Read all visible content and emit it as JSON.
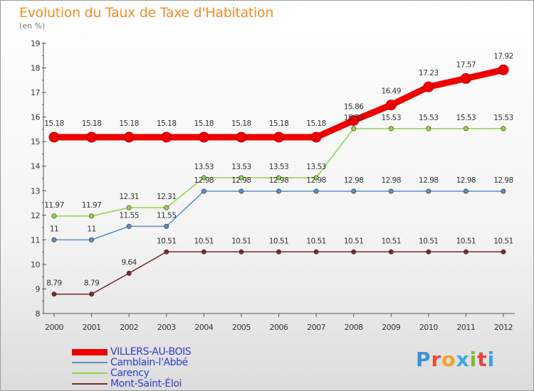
{
  "title": "Evolution du Taux de Taxe d'Habitation",
  "unit": "(en %)",
  "logo": {
    "text": "Proxiti"
  },
  "chart_data": {
    "type": "line",
    "x": [
      "2000",
      "2001",
      "2002",
      "2003",
      "2004",
      "2005",
      "2006",
      "2007",
      "2008",
      "2009",
      "2010",
      "2011",
      "2012"
    ],
    "ylim": [
      8,
      19
    ],
    "yticks": [
      8,
      9,
      10,
      11,
      12,
      13,
      14,
      15,
      16,
      17,
      18,
      19
    ],
    "grid": false,
    "legend_position": "bottom-left",
    "series": [
      {
        "name": "VILLERS-AU-BOIS",
        "color": "#ee0000",
        "values": [
          15.18,
          15.18,
          15.18,
          15.18,
          15.18,
          15.18,
          15.18,
          15.18,
          15.86,
          16.49,
          17.23,
          17.57,
          17.92
        ],
        "labels": [
          "15.18",
          "15.18",
          "15.18",
          "15.18",
          "15.18",
          "15.18",
          "15.18",
          "15.18",
          "15.86",
          "16.49",
          "17.23",
          "17.57",
          "17.92"
        ]
      },
      {
        "name": "Camblain-l'Abbé",
        "color": "#5b8dc8",
        "values": [
          11,
          11,
          11.55,
          11.55,
          12.98,
          12.98,
          12.98,
          12.98,
          12.98,
          12.98,
          12.98,
          12.98,
          12.98
        ],
        "labels": [
          "11",
          "11",
          "11.55",
          "11.55",
          "12.98",
          "12.98",
          "12.98",
          "12.98",
          "12.98",
          "12.98",
          "12.98",
          "12.98",
          "12.98"
        ]
      },
      {
        "name": "Carency",
        "color": "#8fd44a",
        "values": [
          11.97,
          11.97,
          12.31,
          12.31,
          13.53,
          13.53,
          13.53,
          13.53,
          15.53,
          15.53,
          15.53,
          15.53,
          15.53
        ],
        "labels": [
          "11.97",
          "11.97",
          "12.31",
          "12.31",
          "13.53",
          "13.53",
          "13.53",
          "13.53",
          "15.53",
          "15.53",
          "15.53",
          "15.53",
          "15.53"
        ]
      },
      {
        "name": "Mont-Saint-Éloi",
        "color": "#7a2a2a",
        "values": [
          8.79,
          8.79,
          9.64,
          10.51,
          10.51,
          10.51,
          10.51,
          10.51,
          10.51,
          10.51,
          10.51,
          10.51,
          10.51
        ],
        "labels": [
          "8.79",
          "8.79",
          "9.64",
          "10.51",
          "10.51",
          "10.51",
          "10.51",
          "10.51",
          "10.51",
          "10.51",
          "10.51",
          "10.51",
          "10.51"
        ]
      }
    ]
  }
}
